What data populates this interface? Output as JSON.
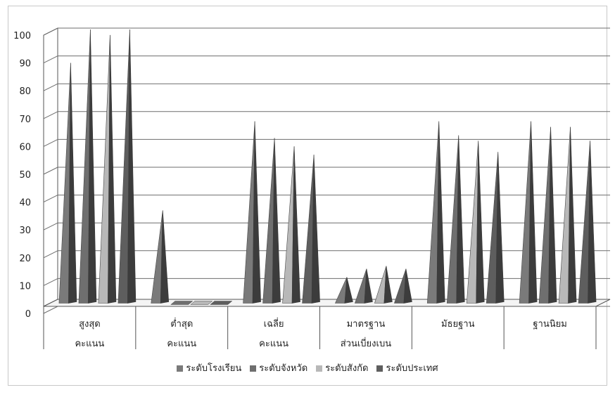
{
  "chart_data": {
    "type": "bar",
    "style": "3d-cone",
    "title": "",
    "xlabel": "",
    "ylabel": "",
    "ylim": [
      0,
      100
    ],
    "yticks": [
      0,
      10,
      20,
      30,
      40,
      50,
      60,
      70,
      80,
      90,
      100
    ],
    "grid": true,
    "legend_position": "bottom",
    "categories": [
      [
        "สูงสุด",
        "คะแนน"
      ],
      [
        "ต่ำสุด",
        "คะแนน"
      ],
      [
        "เฉลี่ย",
        "คะแนน"
      ],
      [
        "มาตรฐาน",
        "ส่วนเบี่ยงเบน"
      ],
      [
        "มัธยฐาน"
      ],
      [
        "ฐานนิยม"
      ]
    ],
    "series": [
      {
        "name": "ระดับโรงเรียน",
        "color": "#7a7a7a",
        "values": [
          88,
          35,
          67,
          11,
          67,
          67
        ]
      },
      {
        "name": "ระดับจังหวัด",
        "color": "#6f6f6f",
        "values": [
          100,
          0,
          61,
          14,
          62,
          65
        ]
      },
      {
        "name": "ระดับสังกัด",
        "color": "#b8b8b8",
        "values": [
          98,
          0,
          58,
          15,
          60,
          65
        ]
      },
      {
        "name": "ระดับประเทศ",
        "color": "#5e5e5e",
        "values": [
          100,
          0,
          55,
          14,
          56,
          60
        ]
      }
    ]
  }
}
